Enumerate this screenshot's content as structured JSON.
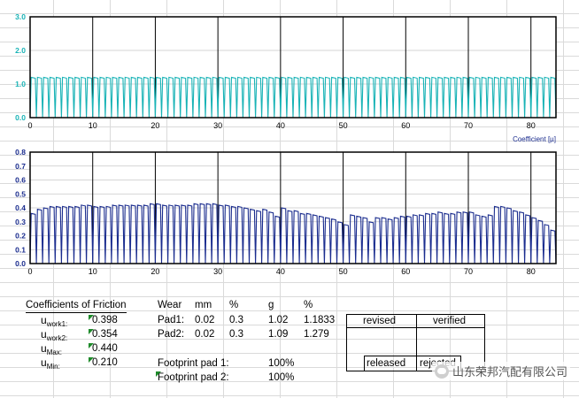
{
  "chart_data": [
    {
      "type": "line",
      "title": "",
      "xlabel": "Coefficient [µ]",
      "ylabel": "",
      "xlim": [
        0,
        84
      ],
      "ylim": [
        0,
        3.0
      ],
      "yticks": [
        "0.0",
        "1.0",
        "2.0",
        "3.0"
      ],
      "xticks": [
        "0",
        "10",
        "20",
        "30",
        "40",
        "50",
        "60",
        "70",
        "80"
      ],
      "grid": true,
      "color": "#19b3b6",
      "series": [
        {
          "x": [
            1,
            2,
            3,
            4,
            5,
            6,
            7,
            8,
            9,
            10,
            11,
            12,
            13,
            14,
            15,
            16,
            17,
            18,
            19,
            20,
            21,
            22,
            23,
            24,
            25,
            26,
            27,
            28,
            29,
            30,
            31,
            32,
            33,
            34,
            35,
            36,
            37,
            38,
            39,
            40,
            41,
            42,
            43,
            44,
            45,
            46,
            47,
            48,
            49,
            50,
            51,
            52,
            53,
            54,
            55,
            56,
            57,
            58,
            59,
            60,
            61,
            62,
            63,
            64,
            65,
            66,
            67,
            68,
            69,
            70,
            71,
            72,
            73,
            74,
            75,
            76,
            77,
            78,
            79,
            80,
            81,
            82,
            83,
            84
          ],
          "y": [
            1.2,
            1.2,
            1.2,
            1.2,
            1.2,
            1.2,
            1.2,
            1.2,
            1.2,
            1.2,
            1.2,
            1.2,
            1.2,
            1.2,
            1.2,
            1.2,
            1.2,
            1.2,
            1.2,
            1.2,
            1.2,
            1.2,
            1.2,
            1.2,
            1.2,
            1.2,
            1.2,
            1.2,
            1.2,
            1.2,
            1.2,
            1.2,
            1.2,
            1.2,
            1.2,
            1.2,
            1.2,
            1.2,
            1.2,
            1.2,
            1.2,
            1.2,
            1.2,
            1.2,
            1.2,
            1.2,
            1.2,
            1.2,
            1.2,
            1.2,
            1.2,
            1.2,
            1.2,
            1.2,
            1.2,
            1.2,
            1.2,
            1.2,
            1.2,
            1.2,
            1.2,
            1.2,
            1.2,
            1.2,
            1.2,
            1.2,
            1.2,
            1.2,
            1.2,
            1.2,
            1.2,
            1.2,
            1.2,
            1.2,
            1.2,
            1.2,
            1.2,
            1.2,
            1.2,
            1.2,
            1.2,
            1.2,
            1.2,
            1.2
          ]
        }
      ]
    },
    {
      "type": "line",
      "title": "",
      "xlabel": "",
      "ylabel": "",
      "xlim": [
        0,
        84
      ],
      "ylim": [
        0,
        0.8
      ],
      "yticks": [
        "0.0",
        "0.1",
        "0.2",
        "0.3",
        "0.4",
        "0.5",
        "0.6",
        "0.7",
        "0.8"
      ],
      "xticks": [
        "0",
        "10",
        "20",
        "30",
        "40",
        "50",
        "60",
        "70",
        "80"
      ],
      "grid": true,
      "color": "#1a2c8e",
      "series": [
        {
          "x": [
            1,
            2,
            3,
            4,
            5,
            6,
            7,
            8,
            9,
            10,
            11,
            12,
            13,
            14,
            15,
            16,
            17,
            18,
            19,
            20,
            21,
            22,
            23,
            24,
            25,
            26,
            27,
            28,
            29,
            30,
            31,
            32,
            33,
            34,
            35,
            36,
            37,
            38,
            39,
            40,
            41,
            42,
            43,
            44,
            45,
            46,
            47,
            48,
            49,
            50,
            51,
            52,
            53,
            54,
            55,
            56,
            57,
            58,
            59,
            60,
            61,
            62,
            63,
            64,
            65,
            66,
            67,
            68,
            69,
            70,
            71,
            72,
            73,
            74,
            75,
            76,
            77,
            78,
            79,
            80,
            81,
            82,
            83,
            84
          ],
          "y": [
            0.36,
            0.39,
            0.4,
            0.41,
            0.41,
            0.41,
            0.41,
            0.41,
            0.42,
            0.42,
            0.41,
            0.41,
            0.41,
            0.42,
            0.42,
            0.42,
            0.42,
            0.42,
            0.42,
            0.43,
            0.43,
            0.42,
            0.42,
            0.42,
            0.42,
            0.42,
            0.43,
            0.43,
            0.43,
            0.43,
            0.42,
            0.42,
            0.41,
            0.41,
            0.4,
            0.39,
            0.38,
            0.39,
            0.37,
            0.34,
            0.4,
            0.38,
            0.38,
            0.36,
            0.36,
            0.35,
            0.34,
            0.33,
            0.32,
            0.3,
            0.28,
            0.35,
            0.34,
            0.33,
            0.3,
            0.33,
            0.33,
            0.32,
            0.33,
            0.34,
            0.34,
            0.35,
            0.35,
            0.36,
            0.36,
            0.37,
            0.36,
            0.36,
            0.37,
            0.37,
            0.37,
            0.35,
            0.34,
            0.35,
            0.41,
            0.41,
            0.4,
            0.38,
            0.37,
            0.35,
            0.33,
            0.31,
            0.28,
            0.24
          ]
        }
      ]
    }
  ],
  "table": {
    "title": "Coefficients of Friction",
    "rows": [
      {
        "label": "u",
        "sub": "work1:",
        "value": "0.398"
      },
      {
        "label": "u",
        "sub": "work2:",
        "value": "0.354"
      },
      {
        "label": "u",
        "sub": "Max:",
        "value": "0.440"
      },
      {
        "label": "u",
        "sub": "Min:",
        "value": "0.210"
      }
    ]
  },
  "wear": {
    "headers": [
      "Wear",
      "mm",
      "%",
      "g",
      "%"
    ],
    "rows": [
      [
        "Pad1:",
        "0.02",
        "0.3",
        "1.02",
        "1.1833"
      ],
      [
        "Pad2:",
        "0.02",
        "0.3",
        "1.09",
        "1.279"
      ]
    ],
    "footprint": [
      {
        "label": "Footprint pad 1:",
        "value": "100%"
      },
      {
        "label": "Footprint pad 2:",
        "value": "100%"
      }
    ]
  },
  "signoff": {
    "revised": "revised",
    "verified": "verified",
    "released": "released",
    "rejected": "rejected"
  },
  "watermark": "山东荣邦汽配有限公司",
  "colors": {
    "marker": "#1e8a2a",
    "tick_top": "#19b3b6",
    "tick_bottom": "#1a2c8e"
  }
}
